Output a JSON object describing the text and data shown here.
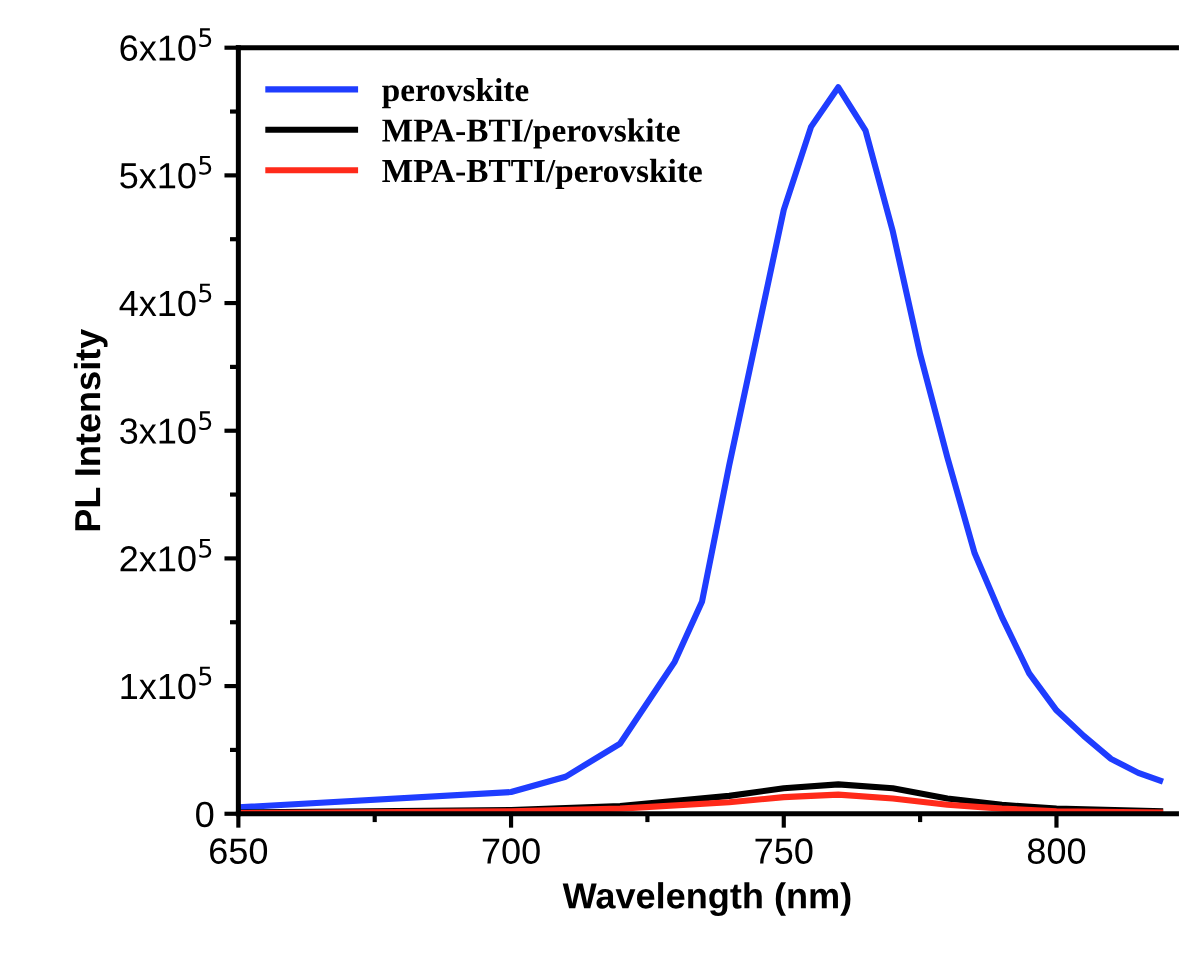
{
  "chart_data": {
    "type": "line",
    "xlabel": "Wavelength (nm)",
    "ylabel": "PL Intensity",
    "xlim": [
      650,
      822
    ],
    "xticks": [
      650,
      700,
      750,
      800
    ],
    "ylim": [
      0,
      600000
    ],
    "yticks": [
      0,
      {
        "value": 100000,
        "label": "1x10$^{5}$"
      },
      {
        "value": 200000,
        "label": "2x10$^{5}$"
      },
      {
        "value": 300000,
        "label": "3x10$^{5}$"
      },
      {
        "value": 400000,
        "label": "4x10$^{5}$"
      },
      {
        "value": 500000,
        "label": "5x10$^{5}$"
      },
      {
        "value": 600000,
        "label": "6x10$^{5}$"
      }
    ],
    "legend": "top left",
    "grid": false,
    "marker": "none",
    "line_style": "solid",
    "series": [
      {
        "name": "perovskite",
        "color": "#1f3dff",
        "x": [
          650,
          700,
          710,
          720,
          730,
          735,
          740,
          745,
          750,
          755,
          760,
          765,
          770,
          775,
          780,
          785,
          790,
          795,
          800,
          805,
          810,
          815,
          819
        ],
        "values": [
          5000,
          17000,
          29000,
          55000,
          119000,
          166000,
          273000,
          373000,
          473000,
          538000,
          569000,
          535000,
          456000,
          360000,
          279000,
          204000,
          154000,
          110000,
          81000,
          61000,
          43000,
          32000,
          26000
        ]
      },
      {
        "name": "MPA-BTI/perovskite",
        "color": "#000000",
        "x": [
          650,
          700,
          720,
          740,
          750,
          760,
          770,
          780,
          790,
          800,
          819
        ],
        "values": [
          1000,
          3000,
          6000,
          14000,
          20000,
          23000,
          20000,
          12000,
          7000,
          4000,
          2000
        ]
      },
      {
        "name": "MPA-BTTI/perovskite",
        "color": "#ff2a1a",
        "x": [
          650,
          700,
          720,
          740,
          750,
          760,
          770,
          780,
          790,
          800,
          819
        ],
        "values": [
          500,
          2000,
          4000,
          9000,
          13000,
          15000,
          12000,
          7000,
          4000,
          2000,
          1000
        ]
      }
    ]
  }
}
